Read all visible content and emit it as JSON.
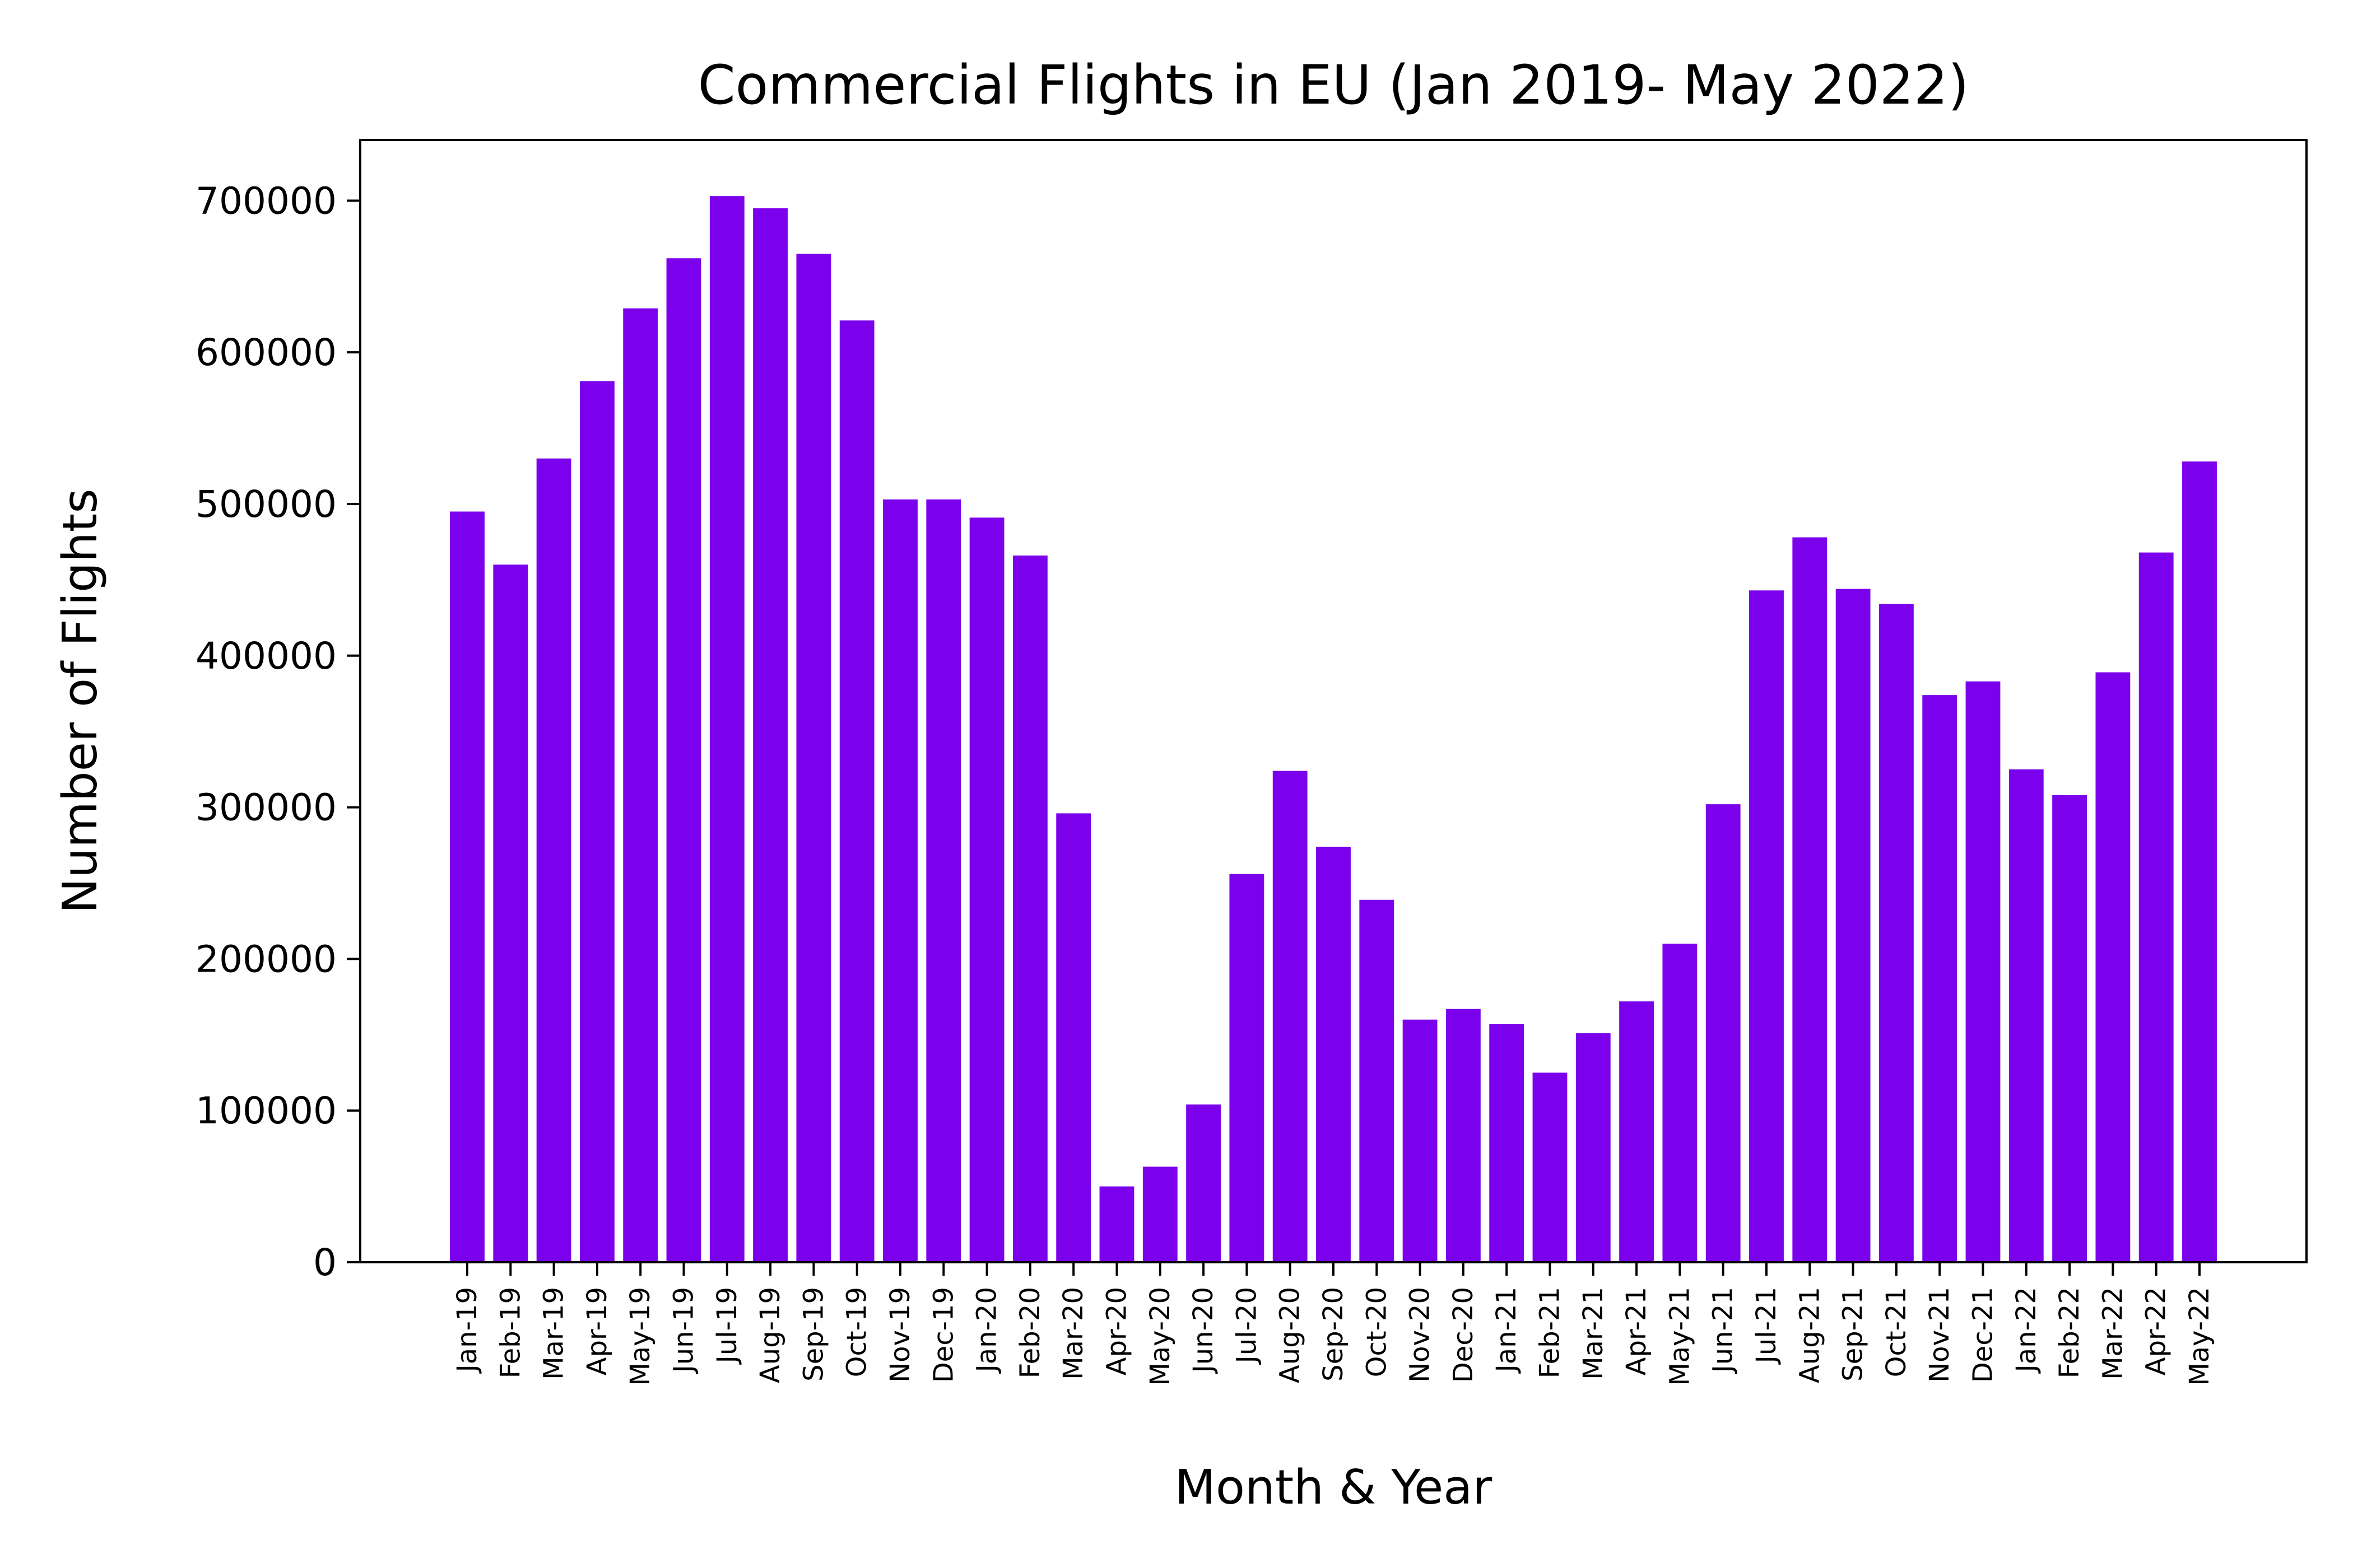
{
  "chart_data": {
    "type": "bar",
    "title": "Commercial Flights in EU (Jan 2019- May 2022)",
    "xlabel": "Month & Year",
    "ylabel": "Number of Flights",
    "ylim": [
      0,
      740000
    ],
    "yticks": [
      0,
      100000,
      200000,
      300000,
      400000,
      500000,
      600000,
      700000
    ],
    "grid": false,
    "bar_color": "#7b00ec",
    "categories": [
      "Jan-19",
      "Feb-19",
      "Mar-19",
      "Apr-19",
      "May-19",
      "Jun-19",
      "Jul-19",
      "Aug-19",
      "Sep-19",
      "Oct-19",
      "Nov-19",
      "Dec-19",
      "Jan-20",
      "Feb-20",
      "Mar-20",
      "Apr-20",
      "May-20",
      "Jun-20",
      "Jul-20",
      "Aug-20",
      "Sep-20",
      "Oct-20",
      "Nov-20",
      "Dec-20",
      "Jan-21",
      "Feb-21",
      "Mar-21",
      "Apr-21",
      "May-21",
      "Jun-21",
      "Jul-21",
      "Aug-21",
      "Sep-21",
      "Oct-21",
      "Nov-21",
      "Dec-21",
      "Jan-22",
      "Feb-22",
      "Mar-22",
      "Apr-22",
      "May-22"
    ],
    "values": [
      495000,
      460000,
      530000,
      581000,
      629000,
      662000,
      703000,
      695000,
      665000,
      621000,
      503000,
      503000,
      491000,
      466000,
      296000,
      50000,
      63000,
      104000,
      256000,
      324000,
      274000,
      239000,
      160000,
      167000,
      157000,
      125000,
      151000,
      172000,
      210000,
      302000,
      443000,
      478000,
      444000,
      434000,
      374000,
      383000,
      325000,
      308000,
      389000,
      468000,
      528000
    ]
  }
}
